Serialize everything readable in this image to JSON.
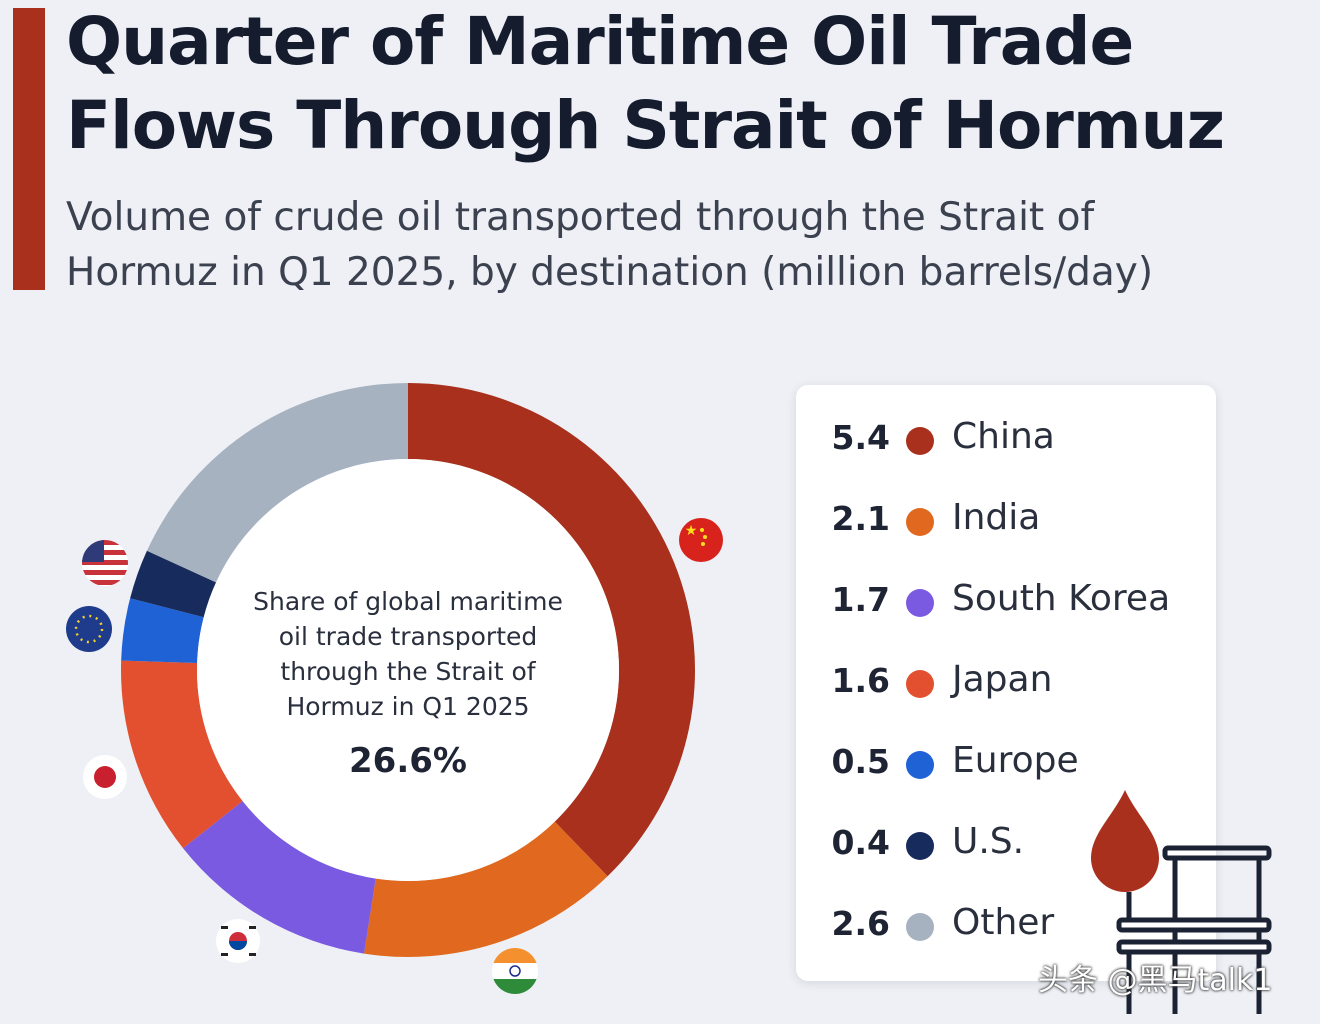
{
  "header": {
    "title_line1": "Quarter of Maritime Oil Trade",
    "title_line2": "Flows Through Strait of Hormuz",
    "subtitle_line1": "Volume of crude oil transported through the Strait of",
    "subtitle_line2": "Hormuz in Q1 2025, by destination (million barrels/day)"
  },
  "center": {
    "lines": [
      "Share of global maritime",
      "oil trade transported",
      "through the Strait of",
      "Hormuz in Q1 2025"
    ],
    "value": "26.6%"
  },
  "chart_data": {
    "type": "pie",
    "title": "Quarter of Maritime Oil Trade Flows Through Strait of Hormuz",
    "subtitle": "Volume of crude oil transported through the Strait of Hormuz in Q1 2025, by destination (million barrels/day)",
    "legend_placement": "right",
    "slices": [
      {
        "name": "China",
        "value": 5.4,
        "value_label": "5.4",
        "color": "#a8301c",
        "flag": "china-flag-icon"
      },
      {
        "name": "India",
        "value": 2.1,
        "value_label": "2.1",
        "color": "#e0691f",
        "flag": "india-flag-icon"
      },
      {
        "name": "South Korea",
        "value": 1.7,
        "value_label": "1.7",
        "color": "#7a5ae0",
        "flag": "south-korea-flag-icon"
      },
      {
        "name": "Japan",
        "value": 1.6,
        "value_label": "1.6",
        "color": "#e2502f",
        "flag": "japan-flag-icon"
      },
      {
        "name": "Europe",
        "value": 0.5,
        "value_label": "0.5",
        "color": "#1e62d6",
        "flag": "eu-flag-icon"
      },
      {
        "name": "U.S.",
        "value": 0.4,
        "value_label": "0.4",
        "color": "#172b5c",
        "flag": "us-flag-icon"
      },
      {
        "name": "Other",
        "value": 2.6,
        "value_label": "2.6",
        "color": "#a7b2c1",
        "flag": ""
      }
    ],
    "center_value": "26.6%"
  },
  "decoration": {
    "icon": "oil-drop-barrel-icon"
  },
  "watermark": "头条 @黑马talk1"
}
